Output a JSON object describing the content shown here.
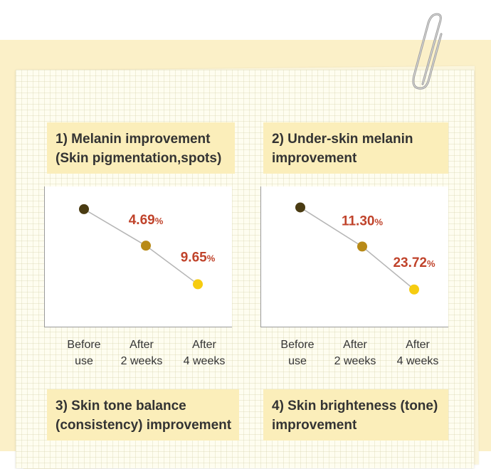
{
  "sections": [
    {
      "title_lines": [
        "1) Melanin improvement",
        "(Skin pigmentation,spots)"
      ]
    },
    {
      "title_lines": [
        "2) Under-skin melanin",
        "improvement"
      ]
    },
    {
      "title_lines": [
        "3) Skin tone balance",
        "(consistency) improvement"
      ]
    },
    {
      "title_lines": [
        "4) Skin brighteness (tone)",
        "improvement"
      ]
    }
  ],
  "chart_data": [
    {
      "type": "line",
      "title": "1) Melanin improvement (Skin pigmentation,spots)",
      "categories": [
        [
          "Before",
          "use"
        ],
        [
          "After",
          "2 weeks"
        ],
        [
          "After",
          "4 weeks"
        ]
      ],
      "annotations": [
        null,
        {
          "value": "4.69",
          "unit": "%"
        },
        {
          "value": "9.65",
          "unit": "%"
        }
      ],
      "values": [
        0,
        -4.69,
        -9.65
      ],
      "ylim": [
        -14,
        2
      ],
      "grid": false,
      "point_colors": [
        "#4a3b12",
        "#b88a17",
        "#f6cc10"
      ],
      "annotation_color": "#c0432b",
      "line_color": "#b5b5b5"
    },
    {
      "type": "line",
      "title": "2) Under-skin melanin improvement",
      "categories": [
        [
          "Before",
          "use"
        ],
        [
          "After",
          "2 weeks"
        ],
        [
          "After",
          "4 weeks"
        ]
      ],
      "annotations": [
        null,
        {
          "value": "11.30",
          "unit": "%"
        },
        {
          "value": "23.72",
          "unit": "%"
        }
      ],
      "values": [
        0,
        -11.3,
        -23.72
      ],
      "ylim": [
        -32,
        4
      ],
      "grid": false,
      "point_colors": [
        "#4a3b12",
        "#b88a17",
        "#f6cc10"
      ],
      "annotation_color": "#c0432b",
      "line_color": "#b5b5b5"
    }
  ]
}
